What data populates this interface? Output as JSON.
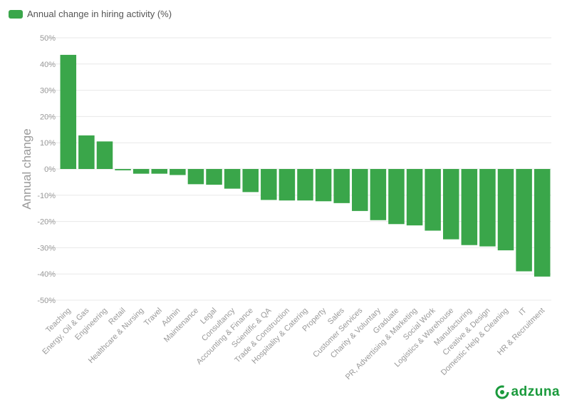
{
  "chart_data": {
    "type": "bar",
    "legend": {
      "label": "Annual change in hiring activity (%)",
      "position": "top-left"
    },
    "ylabel": "Annual change",
    "xlabel": "",
    "ylim": [
      -50,
      50
    ],
    "yticks": [
      50,
      40,
      30,
      20,
      10,
      0,
      -10,
      -20,
      -30,
      -40,
      -50
    ],
    "ytick_labels": [
      "50%",
      "40%",
      "30%",
      "20%",
      "10%",
      "0%",
      "-10%",
      "-20%",
      "-30%",
      "-40%",
      "-50%"
    ],
    "grid": true,
    "bar_color": "#3aa64a",
    "categories": [
      "Teaching",
      "Energy, Oil & Gas",
      "Engineering",
      "Retail",
      "Healthcare & Nursing",
      "Travel",
      "Admin",
      "Maintenance",
      "Legal",
      "Consultancy",
      "Accounting & Finance",
      "Scientific & QA",
      "Trade & Construction",
      "Hospitality & Catering",
      "Property",
      "Sales",
      "Customer Services",
      "Charity & Voluntary",
      "Graduate",
      "PR, Advertising & Marketing",
      "Social Work",
      "Logistics & Warehouse",
      "Manufacturing",
      "Creative & Design",
      "Domestic Help & Cleaning",
      "IT",
      "HR & Recruitment"
    ],
    "values": [
      43.5,
      12.8,
      10.5,
      -0.5,
      -1.8,
      -1.8,
      -2.3,
      -5.8,
      -6.0,
      -7.5,
      -8.8,
      -11.8,
      -12.0,
      -12.0,
      -12.3,
      -13.0,
      -16.0,
      -19.5,
      -21.0,
      -21.5,
      -23.5,
      -26.8,
      -29.0,
      -29.5,
      -31.0,
      -39.0,
      -41.0
    ]
  },
  "brand": {
    "name": "adzuna",
    "color": "#1a9a3c"
  }
}
